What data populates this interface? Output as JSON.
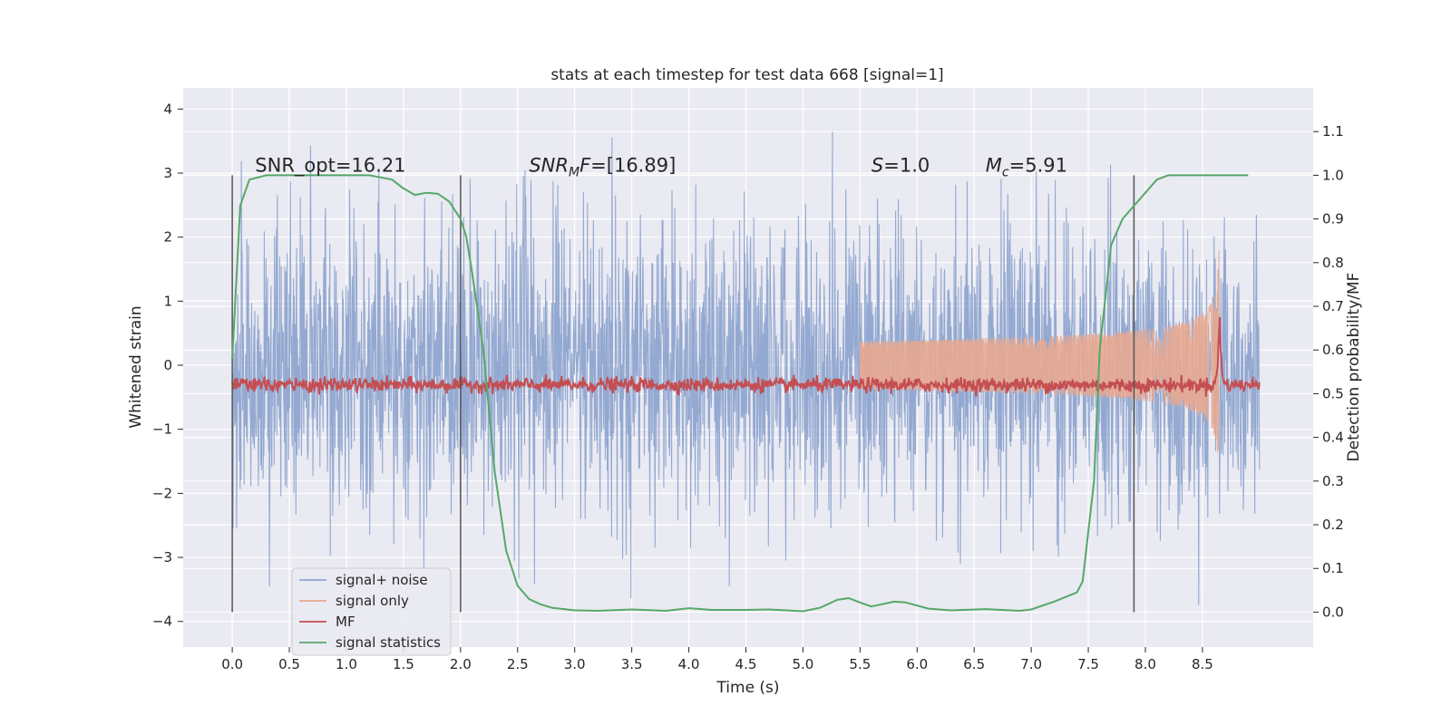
{
  "chart_data": {
    "type": "line",
    "title": "stats at each timestep for test data 668 [signal=1]",
    "xlabel": "Time (s)",
    "ylabel_left": "Whitened strain",
    "ylabel_right": "Detection probability/MF",
    "xlim": [
      -0.43,
      9.47
    ],
    "ylim_left": [
      -4.4,
      4.33
    ],
    "ylim_right": [
      -0.08,
      1.2
    ],
    "x_ticks": [
      "0.0",
      "0.5",
      "1.0",
      "1.5",
      "2.0",
      "2.5",
      "3.0",
      "3.5",
      "4.0",
      "4.5",
      "5.0",
      "5.5",
      "6.0",
      "6.5",
      "7.0",
      "7.5",
      "8.0",
      "8.5"
    ],
    "x_tick_values": [
      0,
      0.5,
      1,
      1.5,
      2,
      2.5,
      3,
      3.5,
      4,
      4.5,
      5,
      5.5,
      6,
      6.5,
      7,
      7.5,
      8,
      8.5
    ],
    "y_left_ticks": [
      "−4",
      "−3",
      "−2",
      "−1",
      "0",
      "1",
      "2",
      "3",
      "4"
    ],
    "y_left_tick_values": [
      -4,
      -3,
      -2,
      -1,
      0,
      1,
      2,
      3,
      4
    ],
    "y_right_ticks": [
      "0.0",
      "0.1",
      "0.2",
      "0.3",
      "0.4",
      "0.5",
      "0.6",
      "0.7",
      "0.8",
      "0.9",
      "1.0",
      "1.1"
    ],
    "y_right_tick_values": [
      0,
      0.1,
      0.2,
      0.3,
      0.4,
      0.5,
      0.6,
      0.7,
      0.8,
      0.9,
      1.0,
      1.1
    ],
    "grid": true,
    "legend_placement": "lower-left",
    "legend": [
      {
        "name": "signal+ noise",
        "color": "#8fa5cf"
      },
      {
        "name": "signal only",
        "color": "#e8a890"
      },
      {
        "name": "MF",
        "color": "#c44e52"
      },
      {
        "name": "signal statistics",
        "color": "#55a868"
      }
    ],
    "noise": {
      "t_start": 0.0,
      "t_end": 9.0,
      "typical_amplitude": 1.9,
      "max_value": 3.95,
      "min_value": -4.05
    },
    "signal_only": {
      "t_start": 5.5,
      "t_merger": 8.65,
      "peak_amplitude": 2.0
    },
    "mf_series": {
      "t_start": 0.0,
      "t_end": 9.0,
      "baseline": 0.52,
      "spike_t": 8.65,
      "spike_value": 0.7
    },
    "signal_statistics": {
      "t": [
        0.0,
        0.07,
        0.15,
        0.3,
        0.5,
        0.8,
        1.0,
        1.2,
        1.4,
        1.5,
        1.6,
        1.7,
        1.8,
        1.9,
        2.0,
        2.05,
        2.1,
        2.2,
        2.3,
        2.4,
        2.5,
        2.6,
        2.7,
        2.8,
        3.0,
        3.2,
        3.5,
        3.8,
        4.0,
        4.2,
        4.5,
        4.7,
        5.0,
        5.15,
        5.3,
        5.4,
        5.5,
        5.6,
        5.8,
        5.9,
        6.1,
        6.3,
        6.6,
        6.9,
        7.0,
        7.2,
        7.4,
        7.45,
        7.55,
        7.6,
        7.7,
        7.8,
        7.9,
        8.0,
        8.1,
        8.2,
        8.3,
        8.5,
        8.8,
        8.9
      ],
      "values": [
        0.58,
        0.93,
        0.99,
        1.0,
        1.0,
        1.0,
        1.0,
        1.0,
        0.99,
        0.97,
        0.955,
        0.96,
        0.958,
        0.94,
        0.9,
        0.86,
        0.78,
        0.6,
        0.32,
        0.14,
        0.06,
        0.03,
        0.018,
        0.01,
        0.004,
        0.003,
        0.006,
        0.003,
        0.009,
        0.005,
        0.005,
        0.006,
        0.002,
        0.01,
        0.028,
        0.032,
        0.022,
        0.013,
        0.024,
        0.022,
        0.008,
        0.004,
        0.007,
        0.003,
        0.006,
        0.024,
        0.045,
        0.07,
        0.3,
        0.6,
        0.84,
        0.9,
        0.93,
        0.96,
        0.99,
        1.0,
        1.0,
        1.0,
        1.0,
        1.0
      ]
    },
    "vertical_markers": [
      0.0,
      2.0,
      7.9
    ],
    "annotations": [
      {
        "x": 0.2,
        "y_right": 1.0,
        "text": "SNR_opt=16.21"
      },
      {
        "x": 2.6,
        "y_right": 1.0,
        "text": "SNR_MF=[16.89]",
        "math_main": "SNR",
        "math_sub": "M",
        "math_tail": "F",
        "value": "=[16.89]"
      },
      {
        "x": 5.6,
        "y_right": 1.0,
        "text": "S=1.0",
        "math_main": "S",
        "value": "=1.0"
      },
      {
        "x": 6.6,
        "y_right": 1.0,
        "text": "M_c=5.91",
        "math_main": "M",
        "math_sub": "c",
        "value": "=5.91"
      }
    ],
    "colors": {
      "axes_bg": "#eaeaf2",
      "grid": "#ffffff",
      "noise": "#8fa5cf",
      "signal": "#e8a890",
      "mf": "#c44e52",
      "stat": "#55a868",
      "marker": "#555555"
    }
  }
}
